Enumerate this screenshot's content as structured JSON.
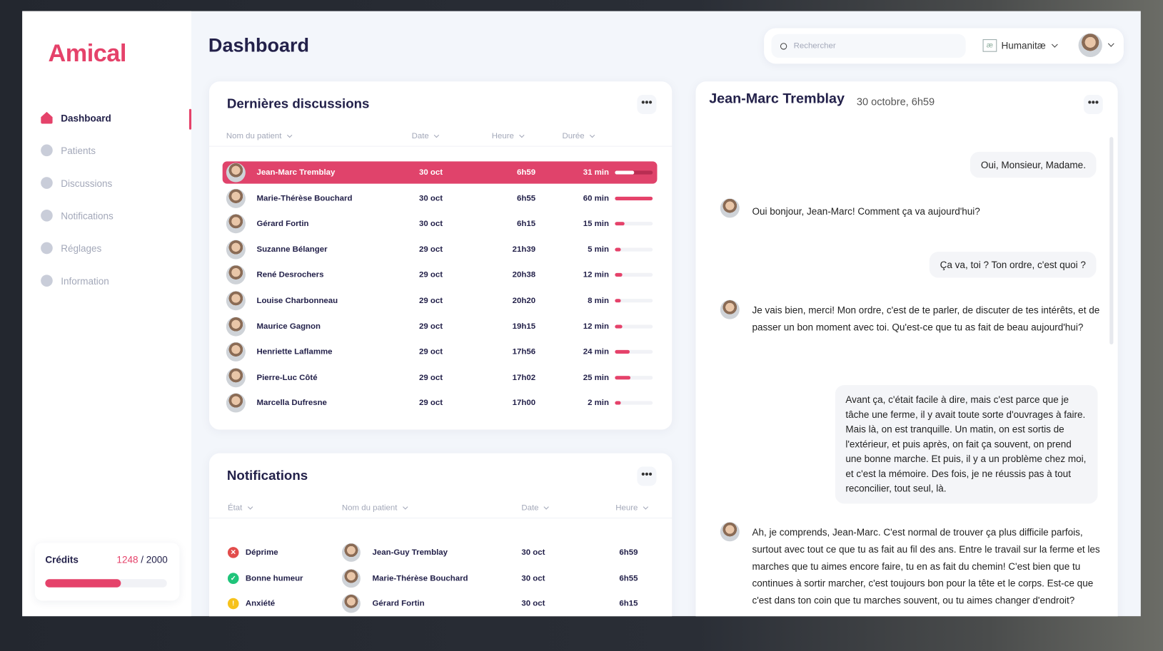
{
  "app": {
    "logo": "Amical",
    "page_title": "Dashboard"
  },
  "sidebar": {
    "items": [
      {
        "label": "Dashboard",
        "icon": "home-icon",
        "active": true
      },
      {
        "label": "Patients",
        "icon": "user-icon"
      },
      {
        "label": "Discussions",
        "icon": "chat-icon"
      },
      {
        "label": "Notifications",
        "icon": "bell-icon"
      },
      {
        "label": "Réglages",
        "icon": "gear-icon"
      },
      {
        "label": "Information",
        "icon": "info-icon"
      }
    ],
    "credits": {
      "label": "Crédits",
      "used": "1248",
      "separator": " / ",
      "total": "2000",
      "fraction": 0.624
    }
  },
  "topbar": {
    "search_placeholder": "Rechercher",
    "org_logo": "æ",
    "org_name": "Humanitæ"
  },
  "discussions": {
    "title": "Dernières discussions",
    "more": "•••",
    "columns": [
      "Nom du patient",
      "Date",
      "Heure",
      "Durée"
    ],
    "rows": [
      {
        "name": "Jean-Marc Tremblay",
        "date": "30 oct",
        "time": "6h59",
        "duration": "31 min",
        "minutes": 31,
        "selected": true
      },
      {
        "name": "Marie-Thérèse Bouchard",
        "date": "30 oct",
        "time": "6h55",
        "duration": "60 min",
        "minutes": 60
      },
      {
        "name": "Gérard Fortin",
        "date": "30 oct",
        "time": "6h15",
        "duration": "15 min",
        "minutes": 15
      },
      {
        "name": "Suzanne Bélanger",
        "date": "29 oct",
        "time": "21h39",
        "duration": "5 min",
        "minutes": 5
      },
      {
        "name": "René Desrochers",
        "date": "29 oct",
        "time": "20h38",
        "duration": "12 min",
        "minutes": 12
      },
      {
        "name": "Louise Charbonneau",
        "date": "29 oct",
        "time": "20h20",
        "duration": "8 min",
        "minutes": 8
      },
      {
        "name": "Maurice Gagnon",
        "date": "29 oct",
        "time": "19h15",
        "duration": "12 min",
        "minutes": 12
      },
      {
        "name": "Henriette Laflamme",
        "date": "29 oct",
        "time": "17h56",
        "duration": "24 min",
        "minutes": 24
      },
      {
        "name": "Pierre-Luc Côté",
        "date": "29 oct",
        "time": "17h02",
        "duration": "25 min",
        "minutes": 25
      },
      {
        "name": "Marcella Dufresne",
        "date": "29 oct",
        "time": "17h00",
        "duration": "2 min",
        "minutes": 2
      }
    ]
  },
  "notifications": {
    "title": "Notifications",
    "more": "•••",
    "columns": [
      "État",
      "Nom du patient",
      "Date",
      "Heure"
    ],
    "rows": [
      {
        "state": "Déprime",
        "status": "error",
        "color": "#e24c4b",
        "name": "Jean-Guy Tremblay",
        "date": "30 oct",
        "time": "6h59"
      },
      {
        "state": "Bonne humeur",
        "status": "ok",
        "color": "#1fc47a",
        "name": "Marie-Thérèse Bouchard",
        "date": "30 oct",
        "time": "6h55"
      },
      {
        "state": "Anxiété",
        "status": "warning",
        "color": "#f6c21c",
        "name": "Gérard Fortin",
        "date": "30 oct",
        "time": "6h15"
      }
    ]
  },
  "chat": {
    "name": "Jean-Marc Tremblay",
    "datetime": "30 octobre, 6h59",
    "more": "•••",
    "messages": [
      {
        "from": "user",
        "text": "Oui, Monsieur, Madame."
      },
      {
        "from": "bot",
        "text": "Oui bonjour, Jean-Marc! Comment ça va aujourd'hui?"
      },
      {
        "from": "user",
        "text": "Ça va, toi ? Ton ordre, c'est quoi ?"
      },
      {
        "from": "bot",
        "text": "Je vais bien, merci! Mon ordre, c'est de te parler, de discuter de tes intérêts, et de passer un bon moment avec toi. Qu'est-ce que tu as fait de beau aujourd'hui?"
      },
      {
        "from": "user",
        "text": "Avant ça, c'était facile à dire, mais c'est parce que je tâche une ferme, il y avait toute sorte d'ouvrages à faire. Mais là, on est tranquille. Un matin, on est sortis de l'extérieur, et puis après, on fait ça souvent, on prend une bonne marche. Et puis, il y a un problème chez moi, et c'est la mémoire. Des fois, je ne réussis pas à tout reconcilier, tout seul, là."
      },
      {
        "from": "bot",
        "text": "Ah, je comprends, Jean-Marc. C'est normal de trouver ça plus difficile parfois, surtout avec tout ce que tu as fait au fil des ans. Entre le travail sur la ferme et les marches que tu aimes encore faire, tu en as fait du chemin! C'est bien que tu continues à sortir marcher, c'est toujours bon pour la tête et le corps. Est-ce que c'est dans ton coin que tu marches souvent, ou tu aimes changer d'endroit?"
      }
    ]
  }
}
